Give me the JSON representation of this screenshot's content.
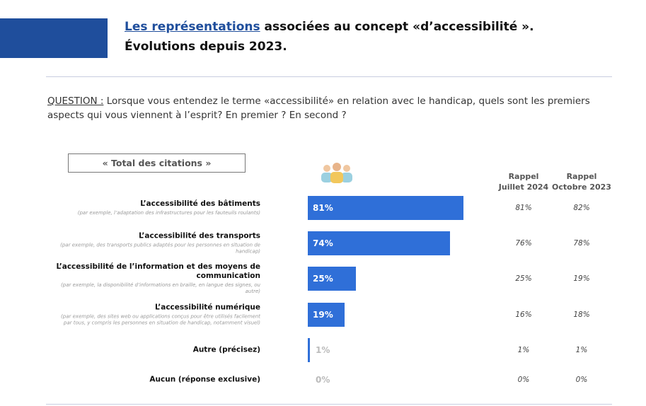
{
  "chart_data": {
    "type": "bar",
    "title_link": "Les représentations",
    "title_rest": "associées au concept «d’accessibilité ».",
    "subtitle": "Évolutions depuis 2023.",
    "question_label": "QUESTION :",
    "question": "Lorsque vous entendez le terme «accessibilité» en relation avec le handicap, quels sont les premiers aspects qui vous viennent à l’esprit? En premier ? En second ?",
    "box_label": "« Total des citations »",
    "categories": [
      "L’accessibilité des bâtiments",
      "L’accessibilité des transports",
      "L’accessibilité de l’information et des moyens de communication",
      "L’accessibilité numérique",
      "Autre (précisez)",
      "Aucun (réponse exclusive)"
    ],
    "descriptions": [
      "(par exemple, l’adaptation des infrastructures pour les fauteuils roulants)",
      "(par exemple, des transports publics adaptés pour les personnes en situation de handicap)",
      "(par exemple, la disponibilité d’informations en braille, en langue des signes, ou autre)",
      "(par exemple, des sites web ou applications conçus pour être utilisés facilement par tous, y compris les personnes en situation de handicap, notamment visuel)",
      null,
      null
    ],
    "values": [
      81,
      74,
      25,
      19,
      1,
      0
    ],
    "value_labels": [
      "81%",
      "74%",
      "25%",
      "19%",
      "1%",
      "0%"
    ],
    "color": "#2f6fd8",
    "recalls": [
      {
        "name": [
          "Rappel",
          "Juillet 2024"
        ],
        "values": [
          81,
          76,
          25,
          16,
          1,
          0
        ],
        "value_labels": [
          "81%",
          "76%",
          "25%",
          "16%",
          "1%",
          "0%"
        ]
      },
      {
        "name": [
          "Rappel",
          "Octobre 2023"
        ],
        "values": [
          82,
          78,
          19,
          18,
          1,
          0
        ],
        "value_labels": [
          "82%",
          "78%",
          "19%",
          "18%",
          "1%",
          "0%"
        ]
      }
    ]
  }
}
